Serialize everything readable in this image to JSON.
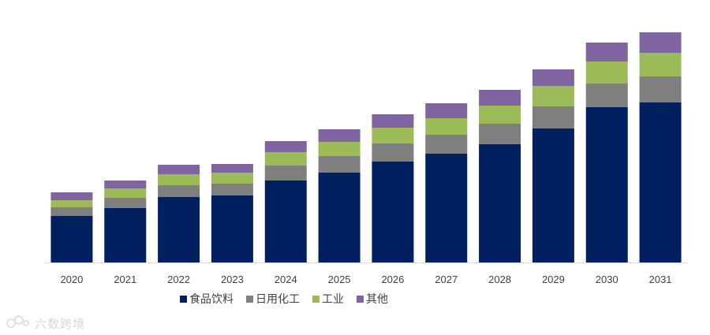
{
  "chart_data": {
    "type": "bar",
    "stacked": true,
    "categories": [
      "2020",
      "2021",
      "2022",
      "2023",
      "2024",
      "2025",
      "2026",
      "2027",
      "2028",
      "2029",
      "2030",
      "2031"
    ],
    "series": [
      {
        "name": "食品饮料",
        "color": "#002060",
        "values": [
          59,
          69,
          83,
          85,
          104,
          114,
          128,
          138,
          150,
          170,
          197,
          203
        ]
      },
      {
        "name": "日用化工",
        "color": "#7f7f7f",
        "values": [
          11,
          13,
          15,
          15,
          19,
          21,
          23,
          24,
          26,
          28,
          30,
          33
        ]
      },
      {
        "name": "工业",
        "color": "#9bbb59",
        "values": [
          9,
          12,
          14,
          14,
          17,
          18,
          20,
          21,
          23,
          26,
          28,
          30
        ]
      },
      {
        "name": "其他",
        "color": "#8064a2",
        "values": [
          10,
          10,
          12,
          11,
          14,
          16,
          17,
          19,
          20,
          21,
          24,
          26
        ]
      }
    ],
    "ylim": [
      0,
      300
    ],
    "grid": false,
    "y_axis_visible": false,
    "legend_position": "bottom"
  },
  "watermark": {
    "text": "六数跨境",
    "icon": "logo-icon"
  }
}
